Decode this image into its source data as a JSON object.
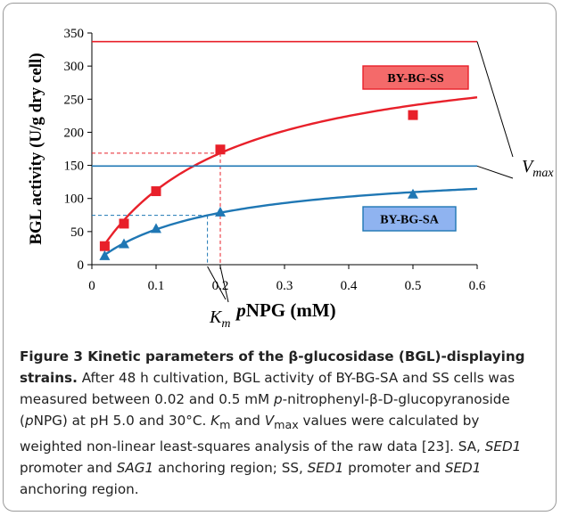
{
  "chart_data": {
    "type": "scatter",
    "ylabel": "BGL activity (U/g dry cell)",
    "xlabel_italic": "p",
    "xlabel_rest": "NPG (mM)",
    "xlim": [
      0,
      0.6
    ],
    "ylim": [
      0,
      350
    ],
    "xticks": [
      0,
      0.1,
      0.2,
      0.3,
      0.4,
      0.5,
      0.6
    ],
    "xtick_labels": [
      "0",
      "0.1",
      "0.2",
      "0.3",
      "0.4",
      "0.5",
      "0.6"
    ],
    "yticks": [
      0,
      50,
      100,
      150,
      200,
      250,
      300,
      350
    ],
    "ytick_labels": [
      "0",
      "50",
      "100",
      "150",
      "200",
      "250",
      "300",
      "350"
    ],
    "grid": false,
    "series": [
      {
        "name": "BY-BG-SS",
        "color": "#e8202a",
        "marker": "square",
        "legend_fill": "#f46a6a",
        "x": [
          0.02,
          0.05,
          0.1,
          0.2,
          0.5
        ],
        "y": [
          28,
          62,
          111,
          174,
          226
        ],
        "vmax": 337,
        "km": 0.2
      },
      {
        "name": "BY-BG-SA",
        "color": "#1f77b4",
        "marker": "triangle",
        "legend_fill": "#8fb3f0",
        "x": [
          0.02,
          0.05,
          0.1,
          0.2,
          0.5
        ],
        "y": [
          13,
          31,
          54,
          79,
          106
        ],
        "vmax": 149,
        "km": 0.18
      }
    ],
    "annotations": {
      "vmax_main": "V",
      "vmax_sub": "max",
      "km_main": "K",
      "km_sub": "m"
    }
  },
  "caption": {
    "bold_lead": "Figure 3 Kinetic parameters of the β-glucosidase (BGL)-displaying strains.",
    "text_1": " After 48 h cultivation, BGL activity of BY-BG-SA and SS cells was measured between 0.02 and 0.5 mM ",
    "italic_p1": "p",
    "text_2": "-nitrophenyl-β-D-glucopyranoside (",
    "italic_p2": "p",
    "text_3": "NPG) at pH 5.0 and 30°C. ",
    "italic_K": "K",
    "sub_m": "m",
    "text_4": " and ",
    "italic_V": "V",
    "sub_max": "max",
    "text_5": " values were calculated by weighted non-linear least-squares analysis of the raw data [23]. SA, ",
    "italic_SED1_a": "SED1",
    "text_6": " promoter and ",
    "italic_SAG1": "SAG1",
    "text_7": " anchoring region; SS, ",
    "italic_SED1_b": "SED1",
    "text_8": " promoter and ",
    "italic_SED1_c": "SED1",
    "text_9": " anchoring region."
  }
}
